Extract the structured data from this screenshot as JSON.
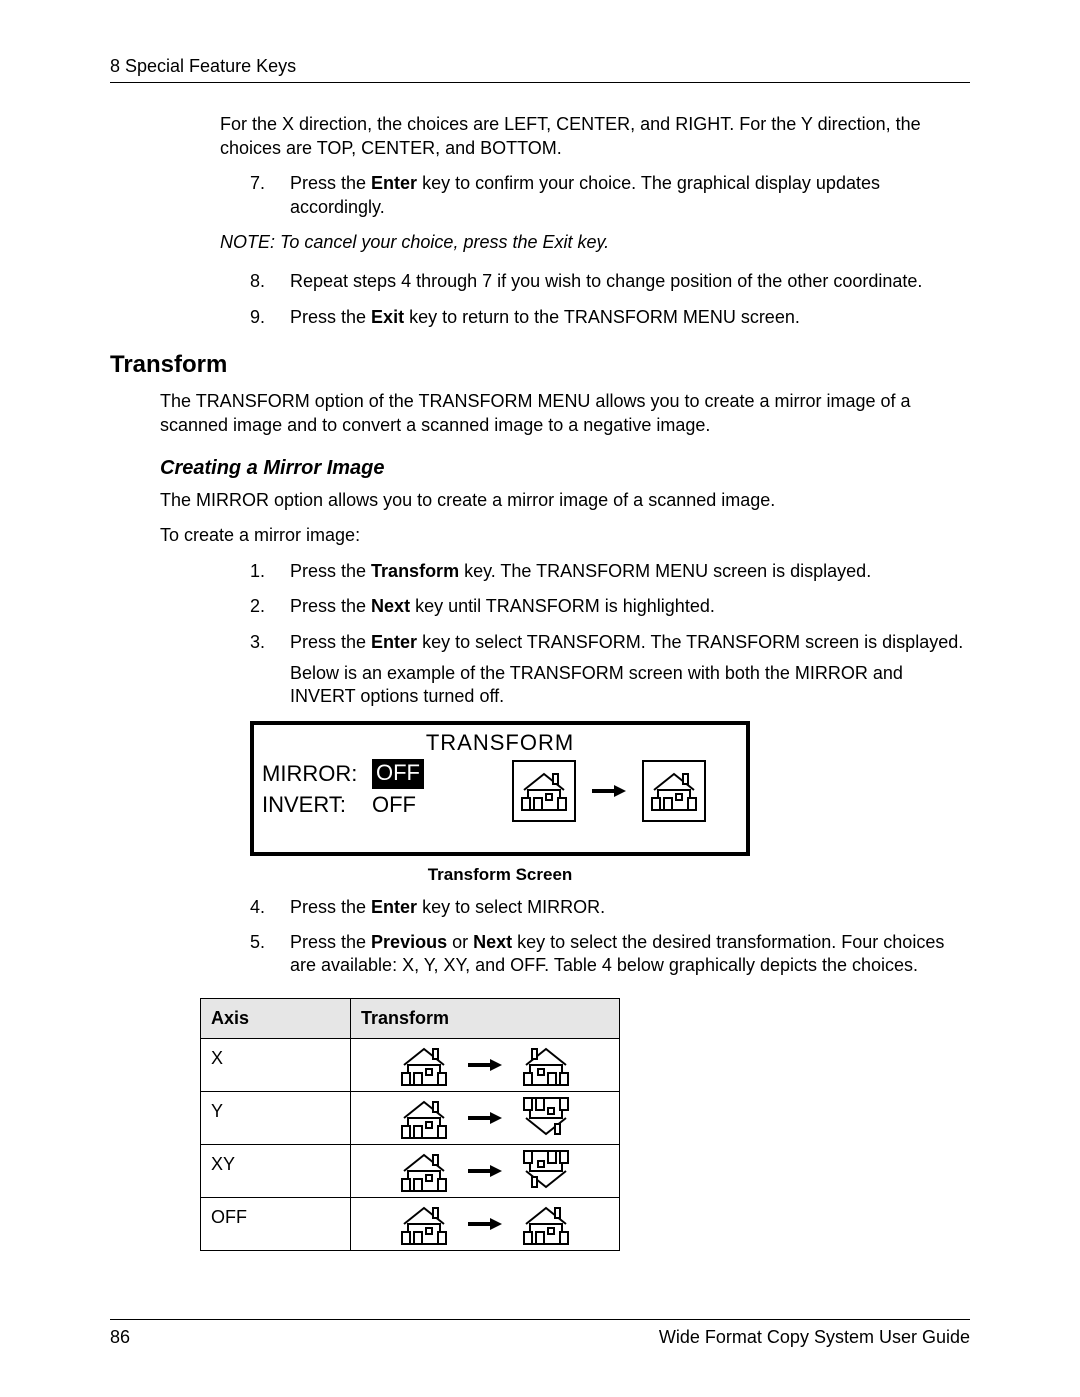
{
  "header": {
    "chapter": "8 Special Feature Keys"
  },
  "intro": {
    "p1": "For the X direction, the choices are LEFT, CENTER, and RIGHT.  For the Y direction, the choices are TOP, CENTER, and BOTTOM."
  },
  "steps_a": {
    "s7_pre": "Press the ",
    "s7_bold": "Enter",
    "s7_post": " key to confirm your choice.  The graphical display updates accordingly.",
    "note": "NOTE:  To cancel your choice, press the Exit key.",
    "s8": "Repeat steps 4 through 7 if you wish to change position of the other coordinate.",
    "s9_pre": "Press the ",
    "s9_bold": "Exit",
    "s9_post": " key to return to the TRANSFORM MENU screen."
  },
  "section": {
    "title": "Transform",
    "desc": "The TRANSFORM option of the TRANSFORM MENU allows you to create a mirror image of a scanned image and to convert a scanned image to a negative image."
  },
  "mirror": {
    "title": "Creating a Mirror Image",
    "desc": "The MIRROR option allows you to create a mirror image of a scanned image.",
    "lead": "To create a mirror image:",
    "s1_pre": "Press the ",
    "s1_bold": "Transform",
    "s1_post": " key.  The TRANSFORM MENU screen is displayed.",
    "s2_pre": "Press the ",
    "s2_bold": "Next",
    "s2_post": " key until TRANSFORM is highlighted.",
    "s3_pre": "Press the ",
    "s3_bold": "Enter",
    "s3_post": " key to select TRANSFORM.  The TRANSFORM screen is displayed.",
    "s3_below": "Below is an example of the TRANSFORM screen with both the MIRROR and INVERT options turned off."
  },
  "screen": {
    "title": "TRANSFORM",
    "row1_label": "MIRROR:",
    "row1_value": "OFF",
    "row2_label": "INVERT:",
    "row2_value": "OFF",
    "caption": "Transform Screen"
  },
  "after_screen": {
    "s4_pre": "Press the ",
    "s4_bold": "Enter",
    "s4_post": " key to select MIRROR.",
    "s5_pre": "Press the ",
    "s5_b1": "Previous",
    "s5_mid": " or ",
    "s5_b2": "Next",
    "s5_post": " key to select the desired transformation.  Four choices are available: X, Y, XY, and OFF.  Table 4 below graphically depicts the choices."
  },
  "table": {
    "col1": "Axis",
    "col2": "Transform",
    "rows": [
      {
        "axis": "X",
        "flip": "X"
      },
      {
        "axis": "Y",
        "flip": "Y"
      },
      {
        "axis": "XY",
        "flip": "XY"
      },
      {
        "axis": "OFF",
        "flip": "OFF"
      }
    ]
  },
  "footer": {
    "page": "86",
    "guide": "Wide Format Copy System User Guide"
  },
  "markers": {
    "n7": "7.",
    "n8": "8.",
    "n9": "9.",
    "n1": "1.",
    "n2": "2.",
    "n3": "3.",
    "n4": "4.",
    "n5": "5."
  },
  "style": {
    "icon_stroke": "#000000",
    "icon_fill": "#ffffff",
    "arrow_fill": "#000000",
    "house_small_w": 44,
    "house_small_h": 44,
    "house_box_w": 54,
    "house_box_h": 54
  }
}
